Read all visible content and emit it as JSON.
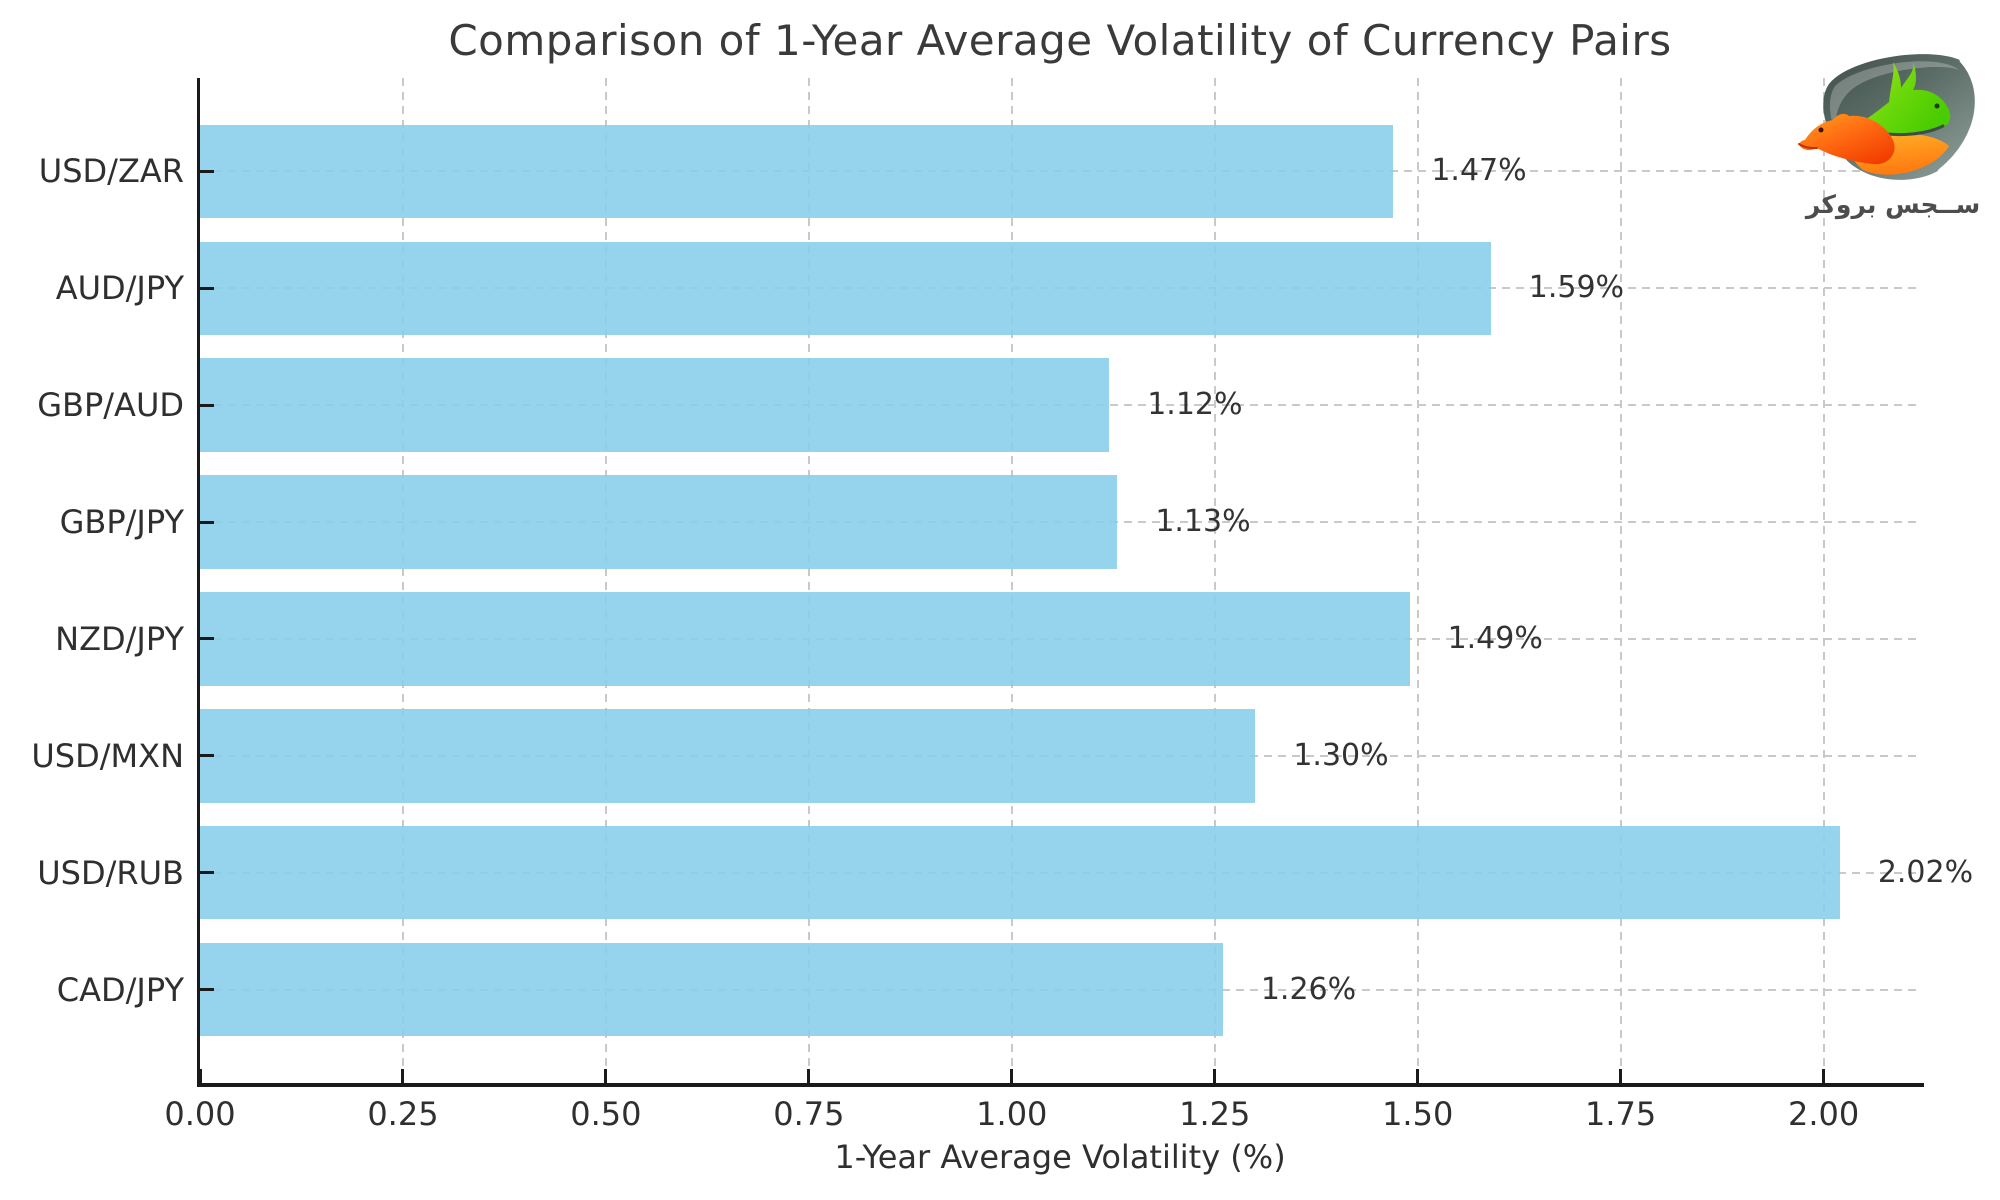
{
  "title": "Comparison of 1-Year Average Volatility of Currency Pairs",
  "logo": {
    "brand_text": "ســجس بروكر"
  },
  "chart_data": {
    "type": "bar",
    "orientation": "horizontal",
    "title": "Comparison of 1-Year Average Volatility of Currency Pairs",
    "xlabel": "1-Year Average Volatility (%)",
    "ylabel": "",
    "categories": [
      "USD/ZAR",
      "AUD/JPY",
      "GBP/AUD",
      "GBP/JPY",
      "NZD/JPY",
      "USD/MXN",
      "USD/RUB",
      "CAD/JPY"
    ],
    "values": [
      1.47,
      1.59,
      1.12,
      1.13,
      1.49,
      1.3,
      2.02,
      1.26
    ],
    "value_labels": [
      "1.47%",
      "1.59%",
      "1.12%",
      "1.13%",
      "1.49%",
      "1.30%",
      "2.02%",
      "1.26%"
    ],
    "x_ticks": [
      "0.00",
      "0.25",
      "0.50",
      "0.75",
      "1.00",
      "1.25",
      "1.50",
      "1.75",
      "2.00"
    ],
    "x_tick_values": [
      0,
      0.25,
      0.5,
      0.75,
      1.0,
      1.25,
      1.5,
      1.75,
      2.0
    ],
    "xlim": [
      0,
      2.12
    ],
    "grid": true,
    "grid_style": "dashed",
    "legend": "none",
    "bar_color": "#87CEEB",
    "grid_color": "#c9c9c9",
    "axis_color": "#1a1a1a",
    "text_color": "#2f2f2f"
  }
}
